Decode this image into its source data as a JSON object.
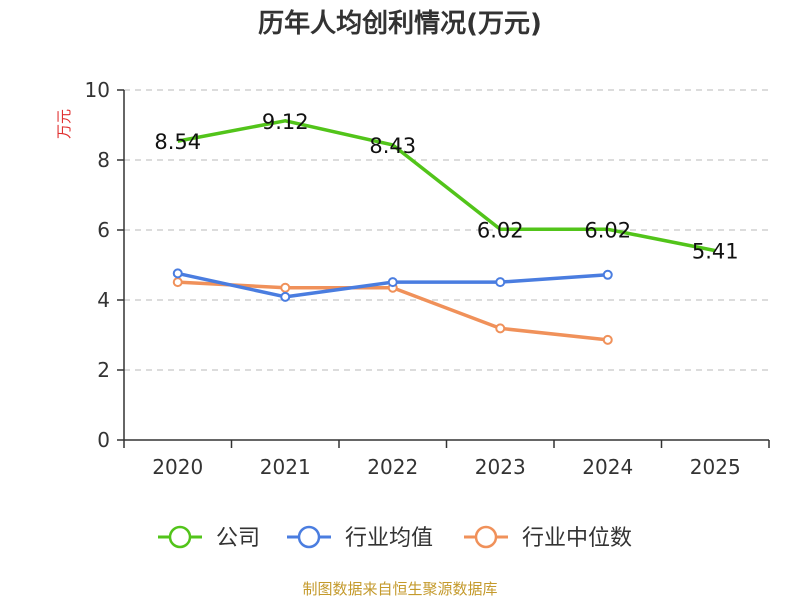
{
  "chart_data": {
    "type": "line",
    "title": "历年人均创利情况(万元)",
    "ylabel": "万元",
    "xlabel": "",
    "categories": [
      "2020",
      "2021",
      "2022",
      "2023",
      "2024",
      "2025"
    ],
    "ylim": [
      0,
      10
    ],
    "yticks": [
      0,
      2,
      4,
      6,
      8,
      10
    ],
    "grid": true,
    "legend_position": "bottom",
    "series": [
      {
        "name": "公司",
        "color": "#52c41a",
        "values": [
          8.54,
          9.12,
          8.43,
          6.02,
          6.02,
          5.41
        ],
        "labels": [
          "8.54",
          "9.12",
          "8.43",
          "6.02",
          "6.02",
          "5.41"
        ]
      },
      {
        "name": "行业均值",
        "color": "#4a7de0",
        "values": [
          4.76,
          4.09,
          4.51,
          4.51,
          4.72,
          null
        ]
      },
      {
        "name": "行业中位数",
        "color": "#f0915a",
        "values": [
          4.51,
          4.35,
          4.35,
          3.19,
          2.86,
          null
        ]
      }
    ],
    "source": "制图数据来自恒生聚源数据库"
  }
}
